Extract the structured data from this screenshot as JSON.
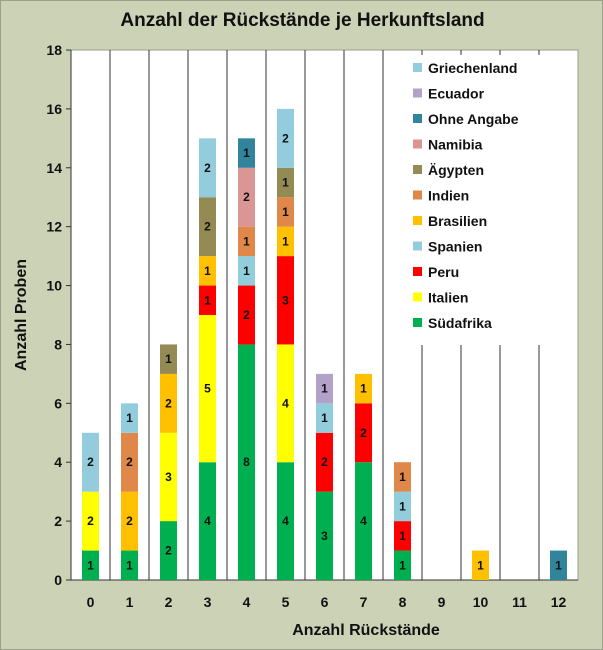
{
  "chart_data": {
    "type": "bar",
    "stacked": true,
    "title": "Anzahl der Rückstände je Herkunftsland",
    "xlabel": "Anzahl Rückstände",
    "ylabel": "Anzahl Proben",
    "categories": [
      "0",
      "1",
      "2",
      "3",
      "4",
      "5",
      "6",
      "7",
      "8",
      "9",
      "10",
      "11",
      "12"
    ],
    "ylim": [
      0,
      18
    ],
    "yticks": [
      0,
      2,
      4,
      6,
      8,
      10,
      12,
      14,
      16,
      18
    ],
    "grid": "vertical category separators",
    "legend_position": "top-right",
    "series": [
      {
        "name": "Südafrika",
        "color": "#00b050",
        "values": [
          1,
          1,
          2,
          4,
          8,
          4,
          3,
          4,
          1,
          0,
          0,
          0,
          0
        ]
      },
      {
        "name": "Italien",
        "color": "#ffff00",
        "values": [
          2,
          0,
          3,
          5,
          0,
          4,
          0,
          0,
          0,
          0,
          0,
          0,
          0
        ]
      },
      {
        "name": "Peru",
        "color": "#ff0000",
        "values": [
          0,
          0,
          0,
          1,
          2,
          3,
          2,
          2,
          1,
          0,
          0,
          0,
          0
        ]
      },
      {
        "name": "Spanien",
        "color": "#92cddc",
        "values": [
          0,
          0,
          0,
          0,
          1,
          0,
          1,
          0,
          1,
          0,
          0,
          0,
          0
        ]
      },
      {
        "name": "Brasilien",
        "color": "#ffc000",
        "values": [
          0,
          2,
          2,
          1,
          0,
          1,
          0,
          1,
          0,
          0,
          1,
          0,
          0
        ]
      },
      {
        "name": "Indien",
        "color": "#e0874a",
        "values": [
          0,
          2,
          0,
          0,
          1,
          1,
          0,
          0,
          1,
          0,
          0,
          0,
          0
        ]
      },
      {
        "name": "Ägypten",
        "color": "#948a54",
        "values": [
          0,
          0,
          1,
          2,
          0,
          1,
          0,
          0,
          0,
          0,
          0,
          0,
          0
        ]
      },
      {
        "name": "Namibia",
        "color": "#d99694",
        "values": [
          0,
          0,
          0,
          0,
          2,
          0,
          0,
          0,
          0,
          0,
          0,
          0,
          0
        ]
      },
      {
        "name": "Ohne Angabe",
        "color": "#31849b",
        "values": [
          0,
          0,
          0,
          0,
          1,
          0,
          0,
          0,
          0,
          0,
          0,
          0,
          1
        ]
      },
      {
        "name": "Ecuador",
        "color": "#b3a2c7",
        "values": [
          0,
          0,
          0,
          0,
          0,
          0,
          1,
          0,
          0,
          0,
          0,
          0,
          0
        ]
      },
      {
        "name": "Griechenland",
        "color": "#93cddd",
        "values": [
          2,
          1,
          0,
          2,
          0,
          2,
          0,
          0,
          0,
          0,
          0,
          0,
          0
        ]
      }
    ]
  }
}
